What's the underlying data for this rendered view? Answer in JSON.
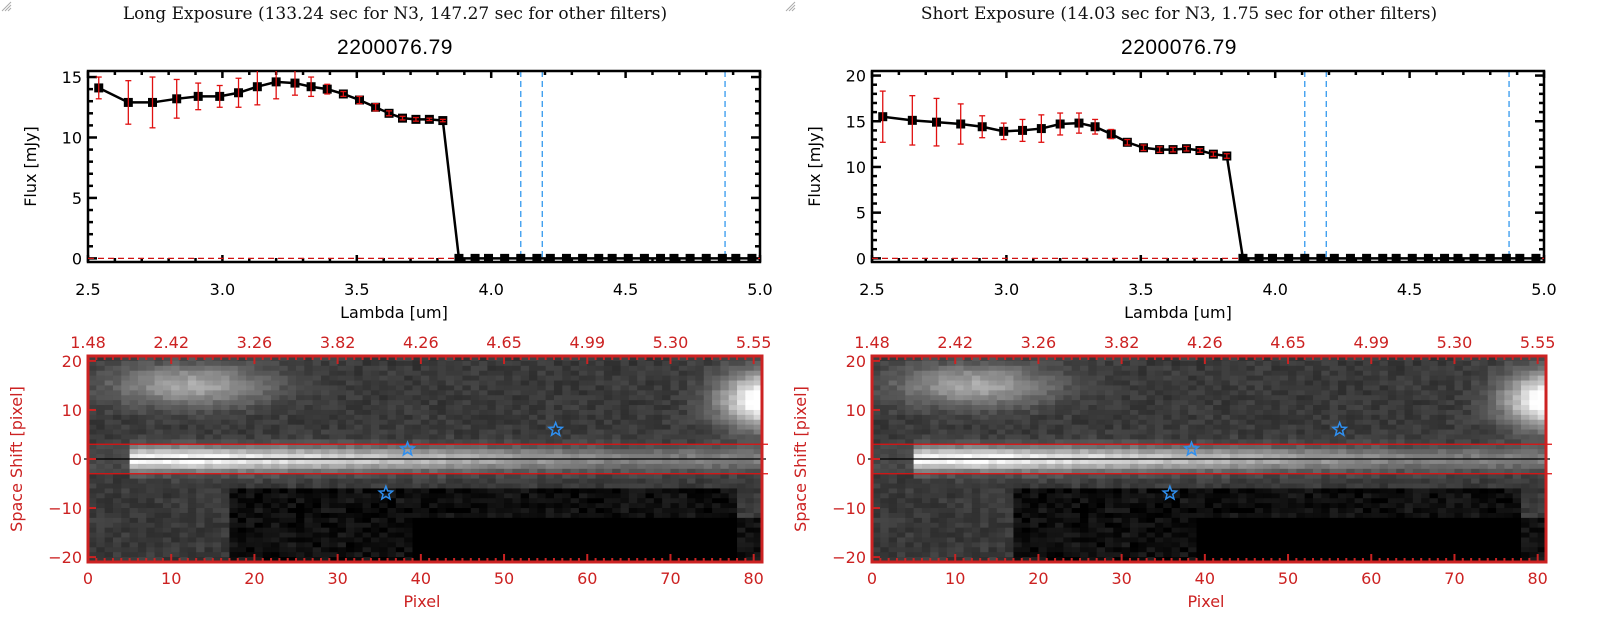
{
  "chart_data": [
    {
      "type": "line",
      "title": "Long Exposure (133.24 sec for N3, 147.27 sec for other filters)",
      "subtitle": "2200076.79",
      "xlabel": "Lambda [um]",
      "ylabel": "Flux [mJy]",
      "xlim": [
        2.5,
        5.0
      ],
      "ylim": [
        -0.3,
        15.5
      ],
      "xticks": [
        "2.5",
        "3.0",
        "3.5",
        "4.0",
        "4.5",
        "5.0"
      ],
      "xtick_values": [
        2.5,
        3.0,
        3.5,
        4.0,
        4.5,
        5.0
      ],
      "yticks": [
        "0",
        "5",
        "10",
        "15"
      ],
      "ytick_values": [
        0,
        5,
        10,
        15
      ],
      "series": [
        {
          "name": "flux",
          "x": [
            2.54,
            2.65,
            2.74,
            2.83,
            2.91,
            2.99,
            3.06,
            3.13,
            3.2,
            3.27,
            3.33,
            3.39,
            3.45,
            3.51,
            3.57,
            3.62,
            3.67,
            3.72,
            3.77,
            3.82,
            3.88,
            3.94,
            3.99,
            4.05,
            4.11,
            4.17,
            4.22,
            4.28,
            4.34,
            4.4,
            4.45,
            4.51,
            4.57,
            4.63,
            4.68,
            4.74,
            4.8,
            4.86,
            4.91,
            4.97
          ],
          "y": [
            14.1,
            12.9,
            12.9,
            13.2,
            13.4,
            13.4,
            13.7,
            14.2,
            14.6,
            14.5,
            14.2,
            14.0,
            13.6,
            13.1,
            12.5,
            12.0,
            11.6,
            11.5,
            11.5,
            11.4,
            0,
            0,
            0,
            0,
            0,
            0,
            0,
            0,
            0,
            0,
            0,
            0,
            0,
            0,
            0,
            0,
            0,
            0,
            0,
            0
          ],
          "yerr": [
            0.9,
            1.8,
            2.1,
            1.6,
            1.1,
            0.9,
            1.2,
            1.5,
            1.4,
            1.0,
            0.8,
            0.4,
            0.2,
            0.3,
            0.3,
            0.2,
            0.15,
            0.15,
            0.1,
            0.1,
            0,
            0,
            0,
            0,
            0,
            0,
            0,
            0,
            0,
            0,
            0,
            0,
            0,
            0,
            0,
            0,
            0,
            0,
            0,
            0
          ]
        }
      ],
      "vlines": [
        4.11,
        4.19,
        4.87
      ],
      "hline": 0,
      "grid": false
    },
    {
      "type": "heatmap",
      "xlabel": "Pixel",
      "ylabel": "Space Shift [pixel]",
      "xlim": [
        0,
        81
      ],
      "ylim": [
        -21,
        21
      ],
      "xticks": [
        "0",
        "10",
        "20",
        "30",
        "40",
        "50",
        "60",
        "70",
        "80"
      ],
      "xtick_values": [
        0,
        10,
        20,
        30,
        40,
        50,
        60,
        70,
        80
      ],
      "yticks": [
        "20",
        "10",
        "0",
        "-10",
        "-20"
      ],
      "ytick_values": [
        20,
        10,
        0,
        -10,
        -20
      ],
      "top_ticks": [
        "1.48",
        "2.42",
        "3.26",
        "3.82",
        "4.26",
        "4.65",
        "4.99",
        "5.30",
        "5.55"
      ],
      "aperture_lines": [
        3,
        -3
      ],
      "center_line": 0,
      "stars": [
        {
          "x": 38.4,
          "y": 2
        },
        {
          "x": 56.2,
          "y": 6
        },
        {
          "x": 35.8,
          "y": -7
        }
      ]
    },
    {
      "type": "line",
      "title": "Short Exposure (14.03 sec for N3, 1.75 sec for other filters)",
      "subtitle": "2200076.79",
      "xlabel": "Lambda [um]",
      "ylabel": "Flux [mJy]",
      "xlim": [
        2.5,
        5.0
      ],
      "ylim": [
        -0.4,
        20.5
      ],
      "xticks": [
        "2.5",
        "3.0",
        "3.5",
        "4.0",
        "4.5",
        "5.0"
      ],
      "xtick_values": [
        2.5,
        3.0,
        3.5,
        4.0,
        4.5,
        5.0
      ],
      "yticks": [
        "0",
        "5",
        "10",
        "15",
        "20"
      ],
      "ytick_values": [
        0,
        5,
        10,
        15,
        20
      ],
      "series": [
        {
          "name": "flux",
          "x": [
            2.54,
            2.65,
            2.74,
            2.83,
            2.91,
            2.99,
            3.06,
            3.13,
            3.2,
            3.27,
            3.33,
            3.39,
            3.45,
            3.51,
            3.57,
            3.62,
            3.67,
            3.72,
            3.77,
            3.82,
            3.88,
            3.94,
            3.99,
            4.05,
            4.11,
            4.17,
            4.22,
            4.28,
            4.34,
            4.4,
            4.45,
            4.51,
            4.57,
            4.63,
            4.68,
            4.74,
            4.8,
            4.86,
            4.91,
            4.97
          ],
          "y": [
            15.5,
            15.1,
            14.9,
            14.7,
            14.4,
            13.9,
            14.0,
            14.2,
            14.7,
            14.8,
            14.4,
            13.6,
            12.7,
            12.1,
            11.9,
            11.9,
            12.0,
            11.8,
            11.4,
            11.2,
            0,
            0,
            0,
            0,
            0,
            0,
            0,
            0,
            0,
            0,
            0,
            0,
            0,
            0,
            0,
            0,
            0,
            0,
            0,
            0
          ],
          "yerr": [
            2.8,
            2.7,
            2.6,
            2.2,
            1.2,
            0.9,
            1.2,
            1.5,
            1.2,
            1.1,
            0.8,
            0.5,
            0.3,
            0.3,
            0.3,
            0.25,
            0.25,
            0.2,
            0.25,
            0.25,
            0,
            0,
            0,
            0,
            0,
            0,
            0,
            0,
            0,
            0,
            0,
            0,
            0,
            0,
            0,
            0,
            0,
            0,
            0,
            0
          ]
        }
      ],
      "vlines": [
        4.11,
        4.19,
        4.87
      ],
      "hline": 0,
      "grid": false
    },
    {
      "type": "heatmap",
      "xlabel": "Pixel",
      "ylabel": "Space Shift [pixel]",
      "xlim": [
        0,
        81
      ],
      "ylim": [
        -21,
        21
      ],
      "xticks": [
        "0",
        "10",
        "20",
        "30",
        "40",
        "50",
        "60",
        "70",
        "80"
      ],
      "xtick_values": [
        0,
        10,
        20,
        30,
        40,
        50,
        60,
        70,
        80
      ],
      "yticks": [
        "20",
        "10",
        "0",
        "-10",
        "-20"
      ],
      "ytick_values": [
        20,
        10,
        0,
        -10,
        -20
      ],
      "top_ticks": [
        "1.48",
        "2.42",
        "3.26",
        "3.82",
        "4.26",
        "4.65",
        "4.99",
        "5.30",
        "5.55"
      ],
      "aperture_lines": [
        3,
        -3
      ],
      "center_line": 0,
      "stars": [
        {
          "x": 38.4,
          "y": 2
        },
        {
          "x": 56.2,
          "y": 6
        },
        {
          "x": 35.8,
          "y": -7
        }
      ]
    }
  ],
  "panels": [
    {
      "title": "Long Exposure (133.24 sec for N3, 147.27 sec for other filters)",
      "object_id": "2200076.79"
    },
    {
      "title": "Short Exposure (14.03 sec for N3, 1.75 sec for other filters)",
      "object_id": "2200076.79"
    }
  ],
  "colors": {
    "axis_red": "#cc2222",
    "errorbar_red": "#e01010",
    "vline_blue": "#3399ee",
    "star_blue": "#2f8fef",
    "line_black": "#000000"
  }
}
